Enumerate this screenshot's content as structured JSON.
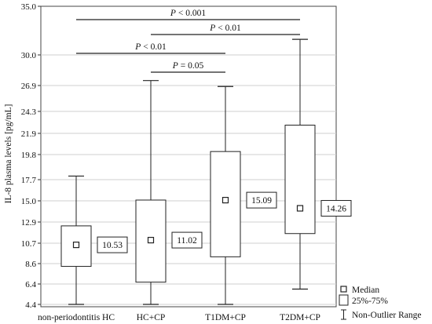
{
  "chart_data": {
    "type": "boxplot",
    "ylabel": "IL-8 plasma levels [pg/mL]",
    "ylim": [
      4.4,
      35.0
    ],
    "yticks": [
      "35.0",
      "30.0",
      "26.9",
      "24.3",
      "21.9",
      "19.8",
      "17.7",
      "15.0",
      "12.9",
      "10.7",
      "8.6",
      "6.4",
      "4.4"
    ],
    "grid": true,
    "categories": [
      "non-periodontitis HC",
      "HC+CP",
      "T1DM+CP",
      "T2DM+CP"
    ],
    "boxes": [
      {
        "category": "non-periodontitis HC",
        "min": 4.4,
        "q1": 8.3,
        "median": 10.53,
        "q3": 12.5,
        "max": 18.0,
        "label": "10.53"
      },
      {
        "category": "HC+CP",
        "min": 4.4,
        "q1": 6.6,
        "median": 11.02,
        "q3": 15.1,
        "max": 27.4,
        "label": "11.02"
      },
      {
        "category": "T1DM+CP",
        "min": 4.4,
        "q1": 9.3,
        "median": 15.09,
        "q3": 20.1,
        "max": 26.8,
        "label": "15.09"
      },
      {
        "category": "T2DM+CP",
        "min": 5.9,
        "q1": 11.7,
        "median": 14.26,
        "q3": 22.8,
        "max": 31.6,
        "label": "14.26"
      }
    ],
    "significance": [
      {
        "from": "non-periodontitis HC",
        "to": "T2DM+CP",
        "text": "P < 0.001"
      },
      {
        "from": "HC+CP",
        "to": "T2DM+CP",
        "text": "P < 0.01"
      },
      {
        "from": "non-periodontitis HC",
        "to": "T1DM+CP",
        "text": "P < 0.01"
      },
      {
        "from": "HC+CP",
        "to": "T1DM+CP",
        "text": "P = 0.05"
      }
    ],
    "legend": {
      "position": "bottom-right",
      "items": [
        {
          "symbol": "median",
          "text": "Median"
        },
        {
          "symbol": "box",
          "text": "25%-75%"
        },
        {
          "symbol": "whisker",
          "text": "Non-Outlier Range"
        }
      ]
    }
  }
}
